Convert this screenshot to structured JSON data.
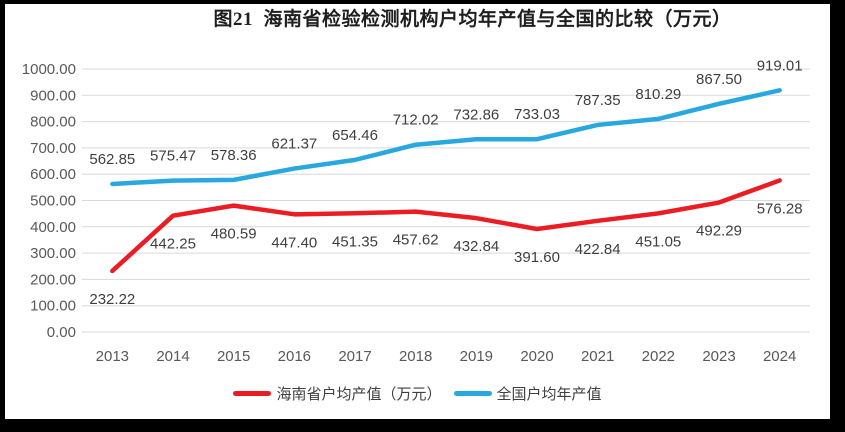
{
  "frame": {
    "border_color": "#000000",
    "background": "#ffffff"
  },
  "styles": {
    "grid_color": "#d9d9d9",
    "axis_text_color": "#595959",
    "data_label_color": "#3f3f3f",
    "title_color": "#1f1f1f"
  },
  "chart_data": {
    "type": "line",
    "title": "图21  海南省检验检测机构户均年产值与全国的比较（万元）",
    "categories": [
      "2013",
      "2014",
      "2015",
      "2016",
      "2017",
      "2018",
      "2019",
      "2020",
      "2021",
      "2022",
      "2023",
      "2024"
    ],
    "series": [
      {
        "name": "海南省户均产值（万元）",
        "color": "#ec1c24",
        "values": [
          232.22,
          442.25,
          480.59,
          447.4,
          451.35,
          457.62,
          432.84,
          391.6,
          422.84,
          451.05,
          492.29,
          576.28
        ],
        "labels": [
          "232.22",
          "442.25",
          "480.59",
          "447.40",
          "451.35",
          "457.62",
          "432.84",
          "391.60",
          "422.84",
          "451.05",
          "492.29",
          "576.28"
        ],
        "label_position": "below"
      },
      {
        "name": "全国户均年产值",
        "color": "#29a8df",
        "values": [
          562.85,
          575.47,
          578.36,
          621.37,
          654.46,
          712.02,
          732.86,
          733.03,
          787.35,
          810.29,
          867.5,
          919.01
        ],
        "labels": [
          "562.85",
          "575.47",
          "578.36",
          "621.37",
          "654.46",
          "712.02",
          "732.86",
          "733.03",
          "787.35",
          "810.29",
          "867.50",
          "919.01"
        ],
        "label_position": "above"
      }
    ],
    "ylim": [
      0,
      1000
    ],
    "ytick_labels": [
      "0.00",
      "100.00",
      "200.00",
      "300.00",
      "400.00",
      "500.00",
      "600.00",
      "700.00",
      "800.00",
      "900.00",
      "1000.00"
    ],
    "grid": true,
    "legend_position": "bottom"
  }
}
